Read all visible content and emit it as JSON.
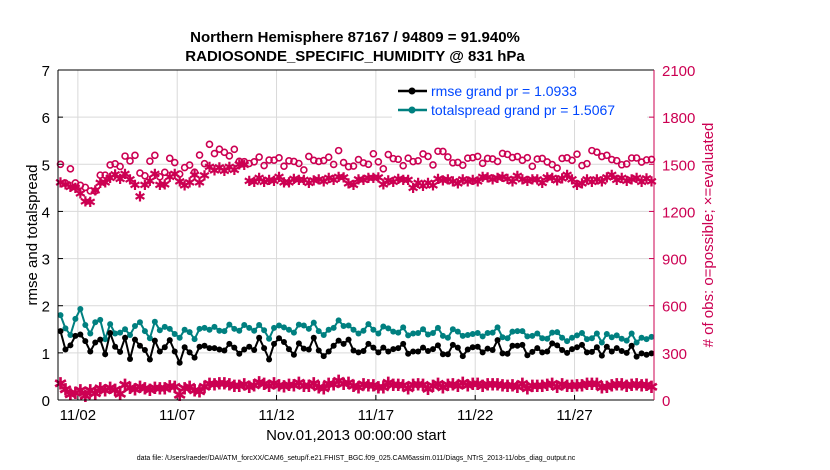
{
  "colors": {
    "rmse": "#000000",
    "spread": "#008080",
    "obs": "#cc0052",
    "legend_text": "#0047ff"
  },
  "chart_data": {
    "type": "line",
    "title": "Northern Hemisphere 87167 / 94809 = 91.940%",
    "subtitle": "RADIOSONDE_SPECIFIC_HUMIDITY @ 831 hPa",
    "xlabel": "Nov.01,2013 00:00:00 start",
    "ylabel_left": "rmse and totalspread",
    "ylabel_right": "# of obs: o=possible; ×=evaluated",
    "footer": "data file: /Users/raeder/DAI/ATM_forcXX/CAM6_setup/f.e21.FHIST_BGC.f09_025.CAM6assim.011/Diags_NTrS_2013-11/obs_diag_output.nc",
    "x_tick_labels": [
      "11/02",
      "11/07",
      "11/12",
      "11/17",
      "11/22",
      "11/27"
    ],
    "x_tick_values": [
      1.5,
      6.5,
      11.5,
      16.5,
      21.5,
      26.5
    ],
    "xlim": [
      0.5,
      30.5
    ],
    "left_ylim": [
      0,
      7
    ],
    "left_yticks": [
      0,
      1,
      2,
      3,
      4,
      5,
      6,
      7
    ],
    "right_ylim": [
      0,
      2100
    ],
    "right_yticks": [
      0,
      300,
      600,
      900,
      1200,
      1500,
      1800,
      2100
    ],
    "legend": [
      {
        "label": "rmse grand pr = 1.0933",
        "series": "rmse"
      },
      {
        "label": "totalspread grand pr = 1.5067",
        "series": "totalspread"
      }
    ],
    "time_step_days": 0.25,
    "series": [
      {
        "name": "rmse",
        "axis": "left",
        "values": [
          1.46,
          1.07,
          1.16,
          1.36,
          1.39,
          1.25,
          1.03,
          1.22,
          1.28,
          0.97,
          1.42,
          1.13,
          1.02,
          1.32,
          0.87,
          1.28,
          1.15,
          1.06,
          0.86,
          1.26,
          1.03,
          1.12,
          1.27,
          1.03,
          0.79,
          1.12,
          1.01,
          0.9,
          1.13,
          1.15,
          1.1,
          1.1,
          1.07,
          1.05,
          1.19,
          1.11,
          0.98,
          1.07,
          1.13,
          1.06,
          1.32,
          1.1,
          0.86,
          1.19,
          1.31,
          1.23,
          1.08,
          0.96,
          1.2,
          1.09,
          1.07,
          1.32,
          1.05,
          0.93,
          1.03,
          1.15,
          1.26,
          1.19,
          1.28,
          1.05,
          1.01,
          1.04,
          1.19,
          1.11,
          1.01,
          1.11,
          1.03,
          1.08,
          1.1,
          1.19,
          0.98,
          1.03,
          1.03,
          1.11,
          1.04,
          1.08,
          1.16,
          0.97,
          0.97,
          1.17,
          1.11,
          0.93,
          1.07,
          1.12,
          1.13,
          1.01,
          1.09,
          1.06,
          1.27,
          0.99,
          0.98,
          1.15,
          1.15,
          1.17,
          0.95,
          1.02,
          1.1,
          1.01,
          1.03,
          1.2,
          1.16,
          1.06,
          1.0,
          1.08,
          1.12,
          1.17,
          1.01,
          1.02,
          1.12,
          0.94,
          1.13,
          1.03,
          1.1,
          1.04,
          1.0,
          1.15,
          0.92,
          0.99,
          0.96,
          0.99
        ]
      },
      {
        "name": "totalspread",
        "axis": "left",
        "values": [
          1.8,
          1.52,
          1.38,
          1.72,
          1.93,
          1.59,
          1.41,
          1.65,
          1.7,
          1.29,
          1.61,
          1.41,
          1.43,
          1.5,
          1.38,
          1.57,
          1.65,
          1.46,
          1.31,
          1.66,
          1.48,
          1.55,
          1.51,
          1.4,
          1.32,
          1.49,
          1.44,
          1.29,
          1.51,
          1.53,
          1.49,
          1.55,
          1.47,
          1.46,
          1.6,
          1.51,
          1.47,
          1.59,
          1.53,
          1.47,
          1.59,
          1.48,
          1.3,
          1.53,
          1.58,
          1.54,
          1.49,
          1.43,
          1.6,
          1.58,
          1.51,
          1.64,
          1.46,
          1.38,
          1.49,
          1.53,
          1.69,
          1.57,
          1.58,
          1.49,
          1.41,
          1.47,
          1.61,
          1.49,
          1.41,
          1.56,
          1.52,
          1.45,
          1.43,
          1.54,
          1.37,
          1.41,
          1.42,
          1.5,
          1.39,
          1.42,
          1.53,
          1.36,
          1.32,
          1.5,
          1.45,
          1.36,
          1.38,
          1.4,
          1.42,
          1.35,
          1.42,
          1.43,
          1.54,
          1.33,
          1.31,
          1.45,
          1.46,
          1.46,
          1.35,
          1.36,
          1.41,
          1.31,
          1.3,
          1.43,
          1.44,
          1.32,
          1.25,
          1.32,
          1.37,
          1.42,
          1.29,
          1.31,
          1.41,
          1.22,
          1.4,
          1.33,
          1.37,
          1.3,
          1.26,
          1.41,
          1.22,
          1.32,
          1.29,
          1.34
        ]
      },
      {
        "name": "possible_obs",
        "axis": "right",
        "values": [
          1500,
          1380,
          1471,
          1381,
          1366,
          1353,
          1330,
          1330,
          1431,
          1431,
          1496,
          1503,
          1486,
          1552,
          1521,
          1557,
          1444,
          1427,
          1520,
          1557,
          1420,
          1449,
          1538,
          1511,
          1438,
          1479,
          1495,
          1450,
          1559,
          1504,
          1627,
          1568,
          1596,
          1576,
          1553,
          1595,
          1519,
          1517,
          1505,
          1516,
          1546,
          1492,
          1527,
          1526,
          1541,
          1488,
          1522,
          1518,
          1505,
          1464,
          1550,
          1525,
          1518,
          1524,
          1545,
          1499,
          1587,
          1511,
          1485,
          1489,
          1530,
          1509,
          1500,
          1567,
          1516,
          1471,
          1562,
          1536,
          1532,
          1491,
          1539,
          1517,
          1522,
          1566,
          1550,
          1496,
          1583,
          1582,
          1547,
          1509,
          1512,
          1494,
          1539,
          1542,
          1550,
          1506,
          1537,
          1534,
          1518,
          1569,
          1563,
          1543,
          1549,
          1525,
          1542,
          1487,
          1533,
          1537,
          1515,
          1498,
          1476,
          1537,
          1541,
          1525,
          1564,
          1492,
          1504,
          1587,
          1577,
          1549,
          1557,
          1530,
          1523,
          1497,
          1502,
          1540,
          1540,
          1514,
          1528,
          1531
        ]
      },
      {
        "name": "evaluated_obs",
        "axis": "right",
        "values": [
          1390,
          1378,
          1363,
          1356,
          1321,
          1270,
          1265,
          1339,
          1387,
          1390,
          1420,
          1442,
          1414,
          1444,
          1411,
          1376,
          1300,
          1374,
          1401,
          1444,
          1373,
          1377,
          1425,
          1445,
          1396,
          1372,
          1390,
          1437,
          1391,
          1436,
          1488,
          1468,
          1486,
          1465,
          1488,
          1469,
          1505,
          1501,
          1399,
          1394,
          1420,
          1393,
          1406,
          1399,
          1425,
          1390,
          1391,
          1414,
          1405,
          1407,
          1388,
          1402,
          1409,
          1397,
          1419,
          1406,
          1427,
          1423,
          1384,
          1373,
          1409,
          1405,
          1420,
          1420,
          1423,
          1379,
          1402,
          1395,
          1412,
          1406,
          1406,
          1357,
          1388,
          1368,
          1386,
          1372,
          1414,
          1404,
          1409,
          1396,
          1383,
          1410,
          1398,
          1407,
          1398,
          1426,
          1422,
          1410,
          1419,
          1426,
          1414,
          1397,
          1431,
          1410,
          1399,
          1411,
          1409,
          1388,
          1423,
          1418,
          1404,
          1417,
          1437,
          1409,
          1376,
          1383,
          1410,
          1393,
          1411,
          1398,
          1422,
          1437,
          1407,
          1419,
          1400,
          1409,
          1419,
          1395,
          1416,
          1396
        ]
      },
      {
        "name": "possible_obs_low",
        "axis": "right",
        "values": [
          110,
          72,
          42,
          52,
          67,
          31,
          67,
          47,
          79,
          67,
          82,
          71,
          46,
          101,
          83,
          72,
          88,
          79,
          69,
          83,
          80,
          79,
          93,
          90,
          38,
          79,
          90,
          68,
          61,
          89,
          107,
          106,
          112,
          111,
          106,
          95,
          97,
          104,
          90,
          99,
          119,
          109,
          97,
          111,
          100,
          92,
          101,
          100,
          113,
          95,
          97,
          110,
          85,
          80,
          109,
          106,
          128,
          108,
          115,
          94,
          86,
          104,
          98,
          99,
          87,
          87,
          114,
          103,
          101,
          100,
          80,
          103,
          105,
          103,
          77,
          94,
          109,
          86,
          103,
          105,
          94,
          114,
          100,
          109,
          108,
          94,
          104,
          105,
          105,
          100,
          96,
          99,
          90,
          108,
          80,
          95,
          97,
          97,
          103,
          108,
          90,
          106,
          96,
          95,
          98,
          99,
          109,
          107,
          109,
          85,
          88,
          100,
          106,
          104,
          97,
          102,
          106,
          99,
          102,
          89
        ]
      }
    ]
  }
}
